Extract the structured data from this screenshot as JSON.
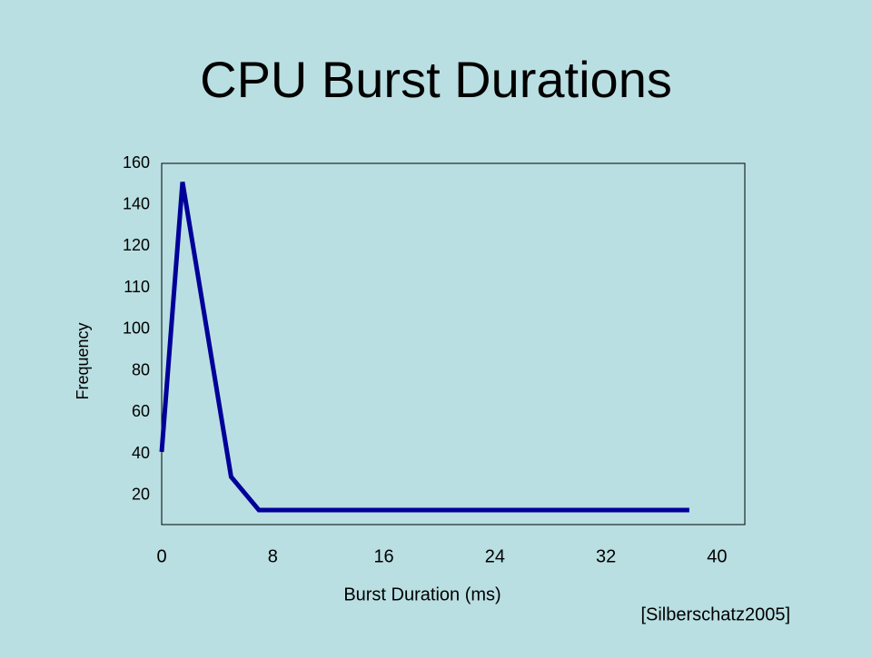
{
  "chart_data": {
    "type": "line",
    "title": "CPU Burst Durations",
    "x_label": "Burst Duration (ms)",
    "y_label": "Frequency",
    "annotation": "[Silberschatz2005]",
    "x": [
      0,
      1.5,
      5,
      7,
      38
    ],
    "series": [
      {
        "name": "Frequency",
        "color": "#000099",
        "values": [
          41,
          151,
          29,
          10,
          10
        ]
      }
    ],
    "xlim": [
      0,
      42
    ],
    "xticks": [
      0,
      8,
      16,
      24,
      32,
      40
    ],
    "ylim": [
      0,
      160
    ],
    "yticks": [
      20,
      40,
      60,
      80,
      100,
      110,
      120,
      140,
      160
    ],
    "grid": false
  }
}
